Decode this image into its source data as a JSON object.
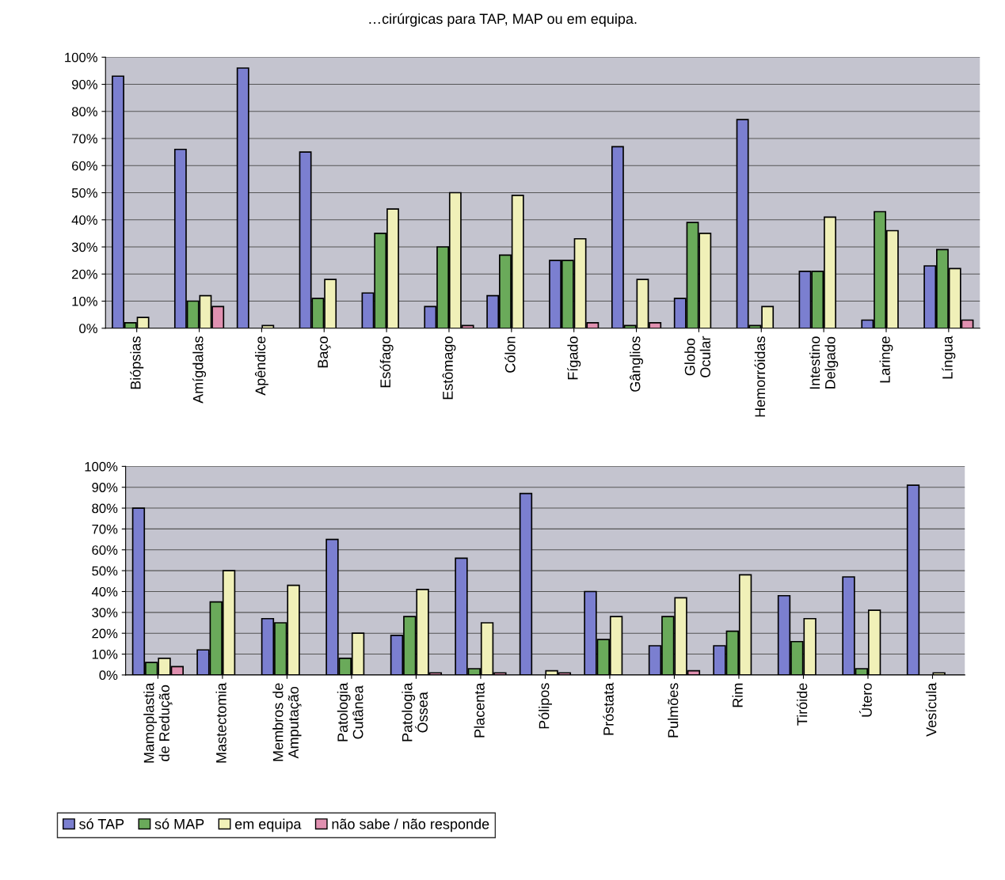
{
  "chart_data": [
    {
      "type": "bar",
      "title": "…cirúrgicas para TAP, MAP ou em equipa.",
      "categories": [
        "Biópsias",
        "Amígdalas",
        "Apêndice",
        "Baço",
        "Esófago",
        "Estômago",
        "Cólon",
        "Fígado",
        "Gânglios",
        "Globo\nOcular",
        "Hemorróidas",
        "Intestino\nDelgado",
        "Laringe",
        "Língua"
      ],
      "series": [
        {
          "color": "#7b7fd0",
          "values": [
            93,
            66,
            96,
            65,
            13,
            8,
            12,
            25,
            67,
            11,
            77,
            21,
            3,
            23
          ]
        },
        {
          "color": "#6aaa5a",
          "values": [
            2,
            10,
            null,
            11,
            35,
            30,
            27,
            25,
            1,
            39,
            1,
            21,
            43,
            29
          ]
        },
        {
          "color": "#f0f0b8",
          "values": [
            4,
            12,
            1,
            18,
            44,
            50,
            49,
            33,
            18,
            35,
            8,
            41,
            36,
            22
          ]
        },
        {
          "color": "#e090b0",
          "values": [
            null,
            8,
            null,
            null,
            null,
            1,
            null,
            2,
            2,
            null,
            null,
            null,
            null,
            3
          ]
        }
      ],
      "ylim": [
        0,
        100
      ],
      "yticks": [
        {
          "value": 0,
          "label": "0%"
        },
        {
          "value": 10,
          "label": "10%"
        },
        {
          "value": 20,
          "label": "20%"
        },
        {
          "value": 30,
          "label": "30%"
        },
        {
          "value": 40,
          "label": "40%"
        },
        {
          "value": 50,
          "label": "50%"
        },
        {
          "value": 60,
          "label": "60%"
        },
        {
          "value": 70,
          "label": "70%"
        },
        {
          "value": 80,
          "label": "80%"
        },
        {
          "value": 90,
          "label": "90%"
        },
        {
          "value": 100,
          "label": "100%"
        }
      ],
      "grid": "y"
    },
    {
      "type": "bar",
      "categories": [
        "Mamoplastia\nde Redução",
        "Mastectomia",
        "Membros de\nAmputação",
        "Patologia\nCutânea",
        "Patologia\nÓssea",
        "Placenta",
        "Pólipos",
        "Próstata",
        "Pulmões",
        "Rim",
        "Tiróide",
        "Útero",
        "Vesícula"
      ],
      "series": [
        {
          "name": "só TAP",
          "color": "#7b7fd0",
          "values": [
            80,
            12,
            27,
            65,
            19,
            56,
            87,
            40,
            14,
            14,
            38,
            47,
            91
          ]
        },
        {
          "name": "só MAP",
          "color": "#6aaa5a",
          "values": [
            6,
            35,
            25,
            8,
            28,
            3,
            null,
            17,
            28,
            21,
            16,
            3,
            null
          ]
        },
        {
          "name": "em equipa",
          "color": "#f0f0b8",
          "values": [
            8,
            50,
            43,
            20,
            41,
            25,
            2,
            28,
            37,
            48,
            27,
            31,
            1
          ]
        },
        {
          "name": "não sabe / não responde",
          "color": "#e090b0",
          "values": [
            4,
            null,
            null,
            null,
            1,
            1,
            1,
            null,
            2,
            null,
            null,
            null,
            null
          ]
        }
      ],
      "ylim": [
        0,
        100
      ],
      "yticks": [
        {
          "value": 0,
          "label": "0%"
        },
        {
          "value": 10,
          "label": "10%"
        },
        {
          "value": 20,
          "label": "20%"
        },
        {
          "value": 30,
          "label": "30%"
        },
        {
          "value": 40,
          "label": "40%"
        },
        {
          "value": 50,
          "label": "50%"
        },
        {
          "value": 60,
          "label": "60%"
        },
        {
          "value": 70,
          "label": "70%"
        },
        {
          "value": 80,
          "label": "80%"
        },
        {
          "value": 90,
          "label": "90%"
        },
        {
          "value": 100,
          "label": "100%"
        }
      ],
      "grid": "y",
      "legend": "bottom"
    }
  ]
}
